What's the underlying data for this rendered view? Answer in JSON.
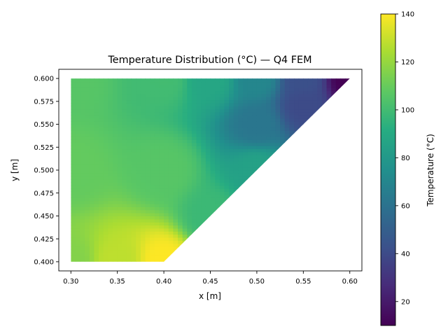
{
  "chart_data": {
    "type": "heatmap",
    "title": "Temperature Distribution (°C) — Q4 FEM",
    "xlabel": "x [m]",
    "ylabel": "y [m]",
    "xlim": [
      0.287,
      0.613
    ],
    "ylim": [
      0.39,
      0.61
    ],
    "xticks": [
      "0.30",
      "0.35",
      "0.40",
      "0.45",
      "0.50",
      "0.55",
      "0.60"
    ],
    "yticks": [
      "0.400",
      "0.425",
      "0.450",
      "0.475",
      "0.500",
      "0.525",
      "0.550",
      "0.575",
      "0.600"
    ],
    "domain_vertices": [
      [
        0.3,
        0.4
      ],
      [
        0.4,
        0.4
      ],
      [
        0.6,
        0.6
      ],
      [
        0.3,
        0.6
      ]
    ],
    "colormap": "viridis",
    "colorbar": {
      "label": "Temperature (°C)",
      "range": [
        10,
        140
      ],
      "ticks": [
        "20",
        "40",
        "60",
        "80",
        "100",
        "120",
        "140"
      ]
    },
    "temperature_samples": [
      {
        "x": 0.3,
        "y": 0.4,
        "t": 116
      },
      {
        "x": 0.35,
        "y": 0.4,
        "t": 128
      },
      {
        "x": 0.4,
        "y": 0.4,
        "t": 140
      },
      {
        "x": 0.3,
        "y": 0.5,
        "t": 109
      },
      {
        "x": 0.4,
        "y": 0.5,
        "t": 106
      },
      {
        "x": 0.5,
        "y": 0.5,
        "t": 85
      },
      {
        "x": 0.3,
        "y": 0.6,
        "t": 106
      },
      {
        "x": 0.4,
        "y": 0.6,
        "t": 100
      },
      {
        "x": 0.45,
        "y": 0.6,
        "t": 88
      },
      {
        "x": 0.5,
        "y": 0.6,
        "t": 70
      },
      {
        "x": 0.55,
        "y": 0.6,
        "t": 42
      },
      {
        "x": 0.6,
        "y": 0.6,
        "t": 10
      },
      {
        "x": 0.45,
        "y": 0.45,
        "t": 98
      },
      {
        "x": 0.5,
        "y": 0.55,
        "t": 62
      },
      {
        "x": 0.55,
        "y": 0.57,
        "t": 40
      }
    ]
  }
}
